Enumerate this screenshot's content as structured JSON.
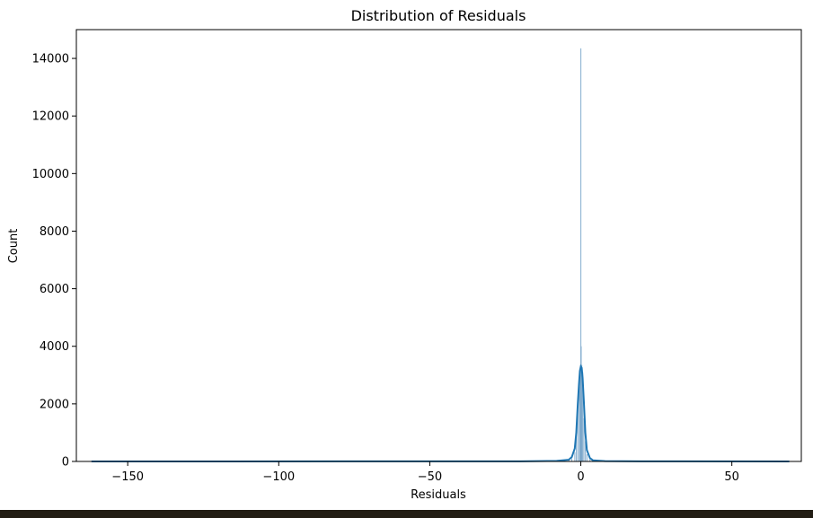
{
  "chart_data": {
    "type": "histogram",
    "title": "Distribution of Residuals",
    "xlabel": "Residuals",
    "ylabel": "Count",
    "xlim": [
      -167,
      73
    ],
    "ylim": [
      0,
      15000
    ],
    "xticks": [
      -150,
      -100,
      -50,
      0,
      50
    ],
    "xtick_labels": [
      "−150",
      "−100",
      "−50",
      "0",
      "50"
    ],
    "yticks": [
      0,
      2000,
      4000,
      6000,
      8000,
      10000,
      12000,
      14000
    ],
    "ytick_labels": [
      "0",
      "2000",
      "4000",
      "6000",
      "8000",
      "10000",
      "12000",
      "14000"
    ],
    "grid": false,
    "data_range": [
      -162,
      69
    ],
    "bins": [
      {
        "x": -4.0,
        "count": 40
      },
      {
        "x": -3.0,
        "count": 100
      },
      {
        "x": -2.0,
        "count": 320
      },
      {
        "x": -1.5,
        "count": 900
      },
      {
        "x": -1.0,
        "count": 2000
      },
      {
        "x": -0.5,
        "count": 2600
      },
      {
        "x": -0.25,
        "count": 3000
      },
      {
        "x": 0.0,
        "count": 14350
      },
      {
        "x": 0.1,
        "count": 4000
      },
      {
        "x": 0.3,
        "count": 3350
      },
      {
        "x": 0.6,
        "count": 3100
      },
      {
        "x": 1.0,
        "count": 1500
      },
      {
        "x": 1.5,
        "count": 700
      },
      {
        "x": 2.0,
        "count": 250
      },
      {
        "x": 3.0,
        "count": 80
      },
      {
        "x": 4.0,
        "count": 30
      }
    ],
    "kde": [
      [
        -162,
        0
      ],
      [
        -20,
        5
      ],
      [
        -8,
        20
      ],
      [
        -4,
        60
      ],
      [
        -3,
        150
      ],
      [
        -2,
        450
      ],
      [
        -1.5,
        1000
      ],
      [
        -1.0,
        2000
      ],
      [
        -0.6,
        2700
      ],
      [
        -0.3,
        3150
      ],
      [
        0,
        3300
      ],
      [
        0.3,
        3250
      ],
      [
        0.6,
        2900
      ],
      [
        1.0,
        2100
      ],
      [
        1.5,
        1000
      ],
      [
        2.0,
        400
      ],
      [
        3.0,
        120
      ],
      [
        4.0,
        40
      ],
      [
        8.0,
        10
      ],
      [
        20,
        3
      ],
      [
        69,
        0
      ]
    ],
    "colors": {
      "bar_fill": "#6f9fc6",
      "line": "#1f77b4",
      "axes": "#000000"
    }
  }
}
